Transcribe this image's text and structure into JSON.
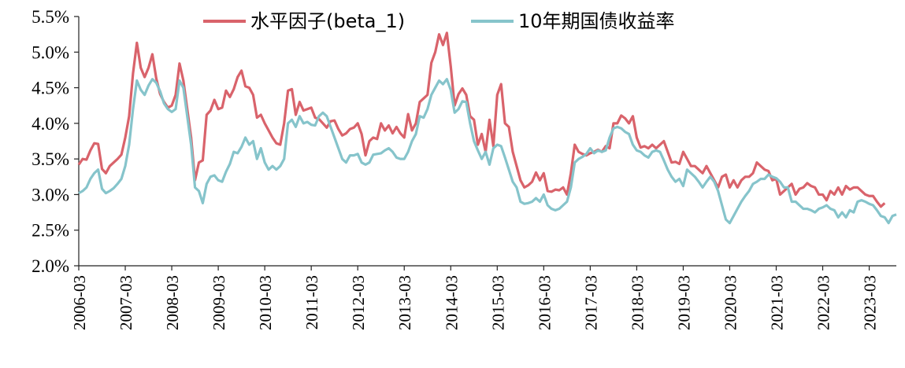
{
  "chart_data": {
    "type": "line",
    "title": "",
    "xlabel": "",
    "ylabel": "",
    "ylim": [
      0.02,
      0.055
    ],
    "y_ticks": [
      "2.0%",
      "2.5%",
      "3.0%",
      "3.5%",
      "4.0%",
      "4.5%",
      "5.0%",
      "5.5%"
    ],
    "x_ticks": [
      "2006-03",
      "2007-03",
      "2008-03",
      "2009-03",
      "2010-03",
      "2011-03",
      "2012-03",
      "2013-03",
      "2014-03",
      "2015-03",
      "2016-03",
      "2017-03",
      "2018-03",
      "2019-03",
      "2020-03",
      "2021-03",
      "2022-03",
      "2023-03"
    ],
    "x_start": "2006-03",
    "legend_position": "top",
    "grid": false,
    "series": [
      {
        "name": "水平因子(beta_1)",
        "color": "#d9636b",
        "values": [
          0.0342,
          0.035,
          0.0349,
          0.0362,
          0.0372,
          0.0371,
          0.0336,
          0.033,
          0.034,
          0.0345,
          0.035,
          0.0356,
          0.038,
          0.041,
          0.047,
          0.0513,
          0.0478,
          0.0465,
          0.0478,
          0.0497,
          0.0463,
          0.0441,
          0.043,
          0.0422,
          0.0425,
          0.044,
          0.0484,
          0.046,
          0.042,
          0.038,
          0.032,
          0.0345,
          0.0348,
          0.0412,
          0.0418,
          0.0433,
          0.042,
          0.0422,
          0.0446,
          0.0437,
          0.0448,
          0.0465,
          0.0474,
          0.0452,
          0.045,
          0.044,
          0.0408,
          0.0412,
          0.04,
          0.039,
          0.038,
          0.0372,
          0.037,
          0.04,
          0.0446,
          0.0448,
          0.0412,
          0.043,
          0.0418,
          0.042,
          0.0422,
          0.0408,
          0.0406,
          0.04,
          0.0394,
          0.0403,
          0.0404,
          0.0392,
          0.0383,
          0.0386,
          0.0392,
          0.0394,
          0.04,
          0.0385,
          0.0355,
          0.0375,
          0.038,
          0.0378,
          0.04,
          0.039,
          0.0397,
          0.0386,
          0.0395,
          0.0386,
          0.038,
          0.0413,
          0.039,
          0.04,
          0.043,
          0.0435,
          0.044,
          0.0485,
          0.05,
          0.0525,
          0.051,
          0.0527,
          0.048,
          0.0425,
          0.0441,
          0.0449,
          0.044,
          0.041,
          0.0405,
          0.037,
          0.0385,
          0.036,
          0.0405,
          0.0368,
          0.044,
          0.0455,
          0.04,
          0.0395,
          0.036,
          0.034,
          0.032,
          0.031,
          0.0313,
          0.0318,
          0.0331,
          0.032,
          0.033,
          0.0305,
          0.0304,
          0.0307,
          0.0306,
          0.031,
          0.03,
          0.033,
          0.037,
          0.036,
          0.0357,
          0.0355,
          0.0358,
          0.036,
          0.0363,
          0.036,
          0.0368,
          0.0365,
          0.04,
          0.04,
          0.0411,
          0.0407,
          0.04,
          0.041,
          0.038,
          0.0366,
          0.0368,
          0.0365,
          0.037,
          0.0365,
          0.037,
          0.0375,
          0.036,
          0.0345,
          0.0346,
          0.0343,
          0.036,
          0.035,
          0.034,
          0.034,
          0.0335,
          0.033,
          0.034,
          0.033,
          0.032,
          0.031,
          0.0325,
          0.0328,
          0.031,
          0.032,
          0.031,
          0.032,
          0.0325,
          0.0325,
          0.033,
          0.0345,
          0.034,
          0.0335,
          0.0333,
          0.032,
          0.0322,
          0.03,
          0.0305,
          0.031,
          0.0315,
          0.03,
          0.0308,
          0.031,
          0.0316,
          0.0312,
          0.031,
          0.03,
          0.03,
          0.0292,
          0.0305,
          0.03,
          0.031,
          0.03,
          0.0312,
          0.0307,
          0.031,
          0.031,
          0.0305,
          0.03,
          0.0298,
          0.0298,
          0.029,
          0.0283,
          0.0288
        ]
      },
      {
        "name": "10年期国债收益率",
        "color": "#86c4cb",
        "values": [
          0.0302,
          0.0305,
          0.031,
          0.0322,
          0.033,
          0.0335,
          0.0308,
          0.0302,
          0.0305,
          0.0309,
          0.0315,
          0.0322,
          0.034,
          0.037,
          0.042,
          0.046,
          0.0447,
          0.044,
          0.0453,
          0.0462,
          0.0457,
          0.0445,
          0.0428,
          0.042,
          0.0416,
          0.042,
          0.046,
          0.045,
          0.041,
          0.037,
          0.031,
          0.0305,
          0.0288,
          0.0315,
          0.0325,
          0.0327,
          0.032,
          0.0318,
          0.0332,
          0.0343,
          0.036,
          0.0358,
          0.0367,
          0.038,
          0.037,
          0.0375,
          0.035,
          0.0365,
          0.0345,
          0.0335,
          0.034,
          0.0335,
          0.034,
          0.035,
          0.04,
          0.0405,
          0.0395,
          0.041,
          0.04,
          0.0402,
          0.0398,
          0.0397,
          0.041,
          0.0415,
          0.041,
          0.0395,
          0.038,
          0.0365,
          0.035,
          0.0345,
          0.0355,
          0.0355,
          0.0357,
          0.0345,
          0.0342,
          0.0345,
          0.0356,
          0.0357,
          0.0358,
          0.0362,
          0.0365,
          0.036,
          0.0352,
          0.035,
          0.035,
          0.036,
          0.0375,
          0.0385,
          0.041,
          0.0408,
          0.042,
          0.044,
          0.045,
          0.046,
          0.0455,
          0.0462,
          0.0447,
          0.0415,
          0.042,
          0.0431,
          0.043,
          0.04,
          0.0375,
          0.0362,
          0.035,
          0.036,
          0.0342,
          0.0365,
          0.037,
          0.0368,
          0.0352,
          0.0335,
          0.0318,
          0.031,
          0.029,
          0.0287,
          0.0288,
          0.029,
          0.0295,
          0.029,
          0.03,
          0.0285,
          0.028,
          0.0278,
          0.028,
          0.0285,
          0.029,
          0.031,
          0.0345,
          0.035,
          0.0353,
          0.0357,
          0.0365,
          0.0358,
          0.0362,
          0.036,
          0.0362,
          0.038,
          0.0393,
          0.0395,
          0.0393,
          0.0388,
          0.0385,
          0.037,
          0.0362,
          0.036,
          0.0355,
          0.0352,
          0.036,
          0.0362,
          0.036,
          0.0348,
          0.0335,
          0.0325,
          0.0318,
          0.0322,
          0.0312,
          0.0335,
          0.033,
          0.0325,
          0.0318,
          0.031,
          0.0318,
          0.0325,
          0.0318,
          0.0305,
          0.0285,
          0.0265,
          0.026,
          0.027,
          0.028,
          0.029,
          0.0298,
          0.0305,
          0.0315,
          0.0318,
          0.0322,
          0.0322,
          0.0328,
          0.0325,
          0.0323,
          0.0318,
          0.031,
          0.031,
          0.029,
          0.029,
          0.0285,
          0.028,
          0.028,
          0.0278,
          0.0275,
          0.028,
          0.0282,
          0.0285,
          0.028,
          0.0278,
          0.0268,
          0.0275,
          0.0268,
          0.0278,
          0.0275,
          0.029,
          0.0292,
          0.029,
          0.0287,
          0.0285,
          0.0278,
          0.027,
          0.0268,
          0.026,
          0.027,
          0.0272
        ]
      }
    ]
  }
}
